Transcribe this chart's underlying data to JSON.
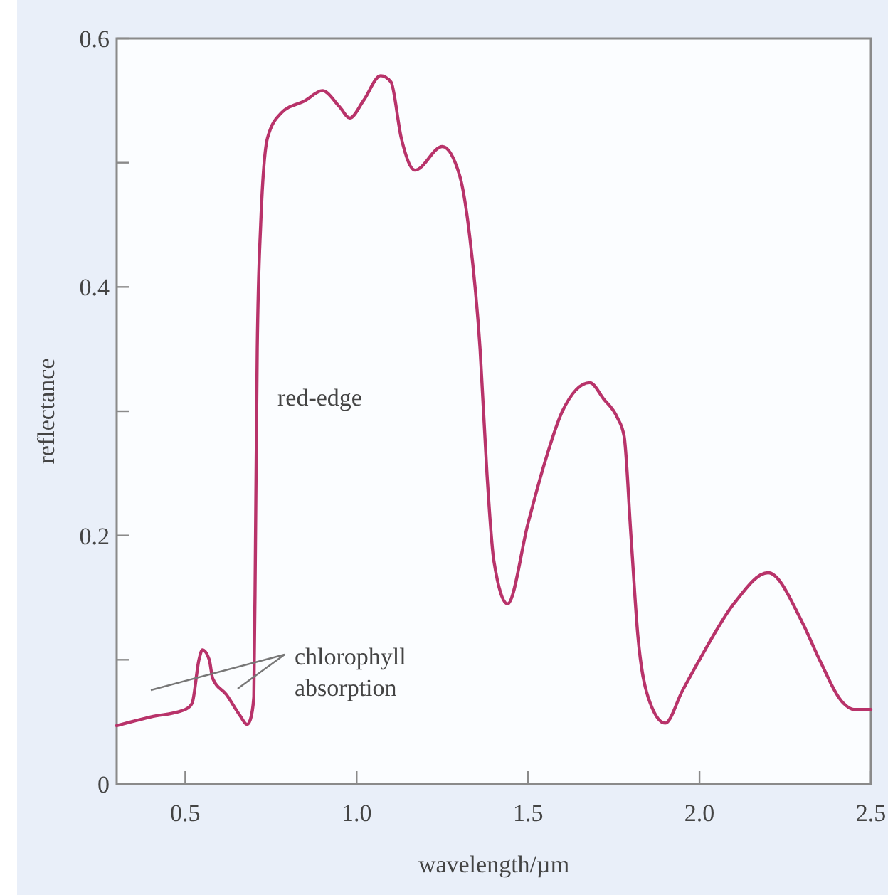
{
  "chart_data": {
    "type": "line",
    "xlabel": "wavelength/µm",
    "ylabel": "reflectance",
    "xlim": [
      0.3,
      2.5
    ],
    "xticks": [
      0.5,
      "1.0",
      1.5,
      "2.0",
      2.5
    ],
    "ylim": [
      0,
      0.6
    ],
    "yticks": [
      0,
      {
        "value": 0.1,
        "label": null
      },
      0.2,
      {
        "value": 0.3,
        "label": null
      },
      0.4,
      {
        "value": 0.5,
        "label": null
      },
      0.6
    ],
    "grid": false,
    "marker": "none",
    "line_style": "solid",
    "series": [
      {
        "color": "#b8336a",
        "x": [
          0.3,
          0.4,
          0.5,
          0.52,
          0.54,
          0.55,
          0.57,
          0.58,
          0.62,
          0.66,
          0.68,
          0.69,
          0.7,
          0.705,
          0.71,
          0.72,
          0.74,
          0.78,
          0.85,
          0.9,
          0.95,
          0.98,
          1.02,
          1.07,
          1.1,
          1.13,
          1.17,
          1.25,
          1.3,
          1.33,
          1.36,
          1.38,
          1.4,
          1.44,
          1.5,
          1.55,
          1.6,
          1.68,
          1.72,
          1.76,
          1.78,
          1.8,
          1.82,
          1.85,
          1.9,
          1.95,
          2.0,
          2.1,
          2.2,
          2.3,
          2.35,
          2.42,
          2.45,
          2.5
        ],
        "values": [
          0.047,
          0.054,
          0.06,
          0.065,
          0.1,
          0.108,
          0.1,
          0.085,
          0.072,
          0.055,
          0.048,
          0.052,
          0.07,
          0.2,
          0.35,
          0.45,
          0.52,
          0.54,
          0.55,
          0.558,
          0.545,
          0.536,
          0.55,
          0.57,
          0.565,
          0.52,
          0.494,
          0.513,
          0.49,
          0.44,
          0.35,
          0.25,
          0.18,
          0.145,
          0.21,
          0.26,
          0.3,
          0.323,
          0.31,
          0.295,
          0.28,
          0.2,
          0.12,
          0.07,
          0.049,
          0.075,
          0.1,
          0.145,
          0.17,
          0.13,
          0.1,
          0.065,
          0.06,
          0.06
        ]
      }
    ],
    "annotations": [
      "red-edge",
      "chlorophyll\nabsorption"
    ]
  }
}
